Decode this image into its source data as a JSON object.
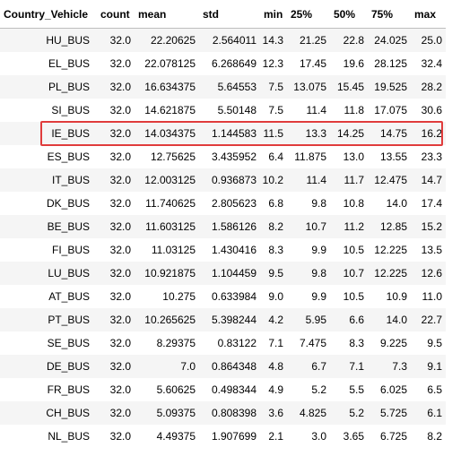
{
  "table": {
    "index_header": "Country_Vehicle",
    "columns": [
      "count",
      "mean",
      "std",
      "min",
      "25%",
      "50%",
      "75%",
      "max"
    ],
    "rows": [
      {
        "label": "HU_BUS",
        "values": [
          "32.0",
          "22.20625",
          "2.564011",
          "14.3",
          "21.25",
          "22.8",
          "24.025",
          "25.0"
        ]
      },
      {
        "label": "EL_BUS",
        "values": [
          "32.0",
          "22.078125",
          "6.268649",
          "12.3",
          "17.45",
          "19.6",
          "28.125",
          "32.4"
        ]
      },
      {
        "label": "PL_BUS",
        "values": [
          "32.0",
          "16.634375",
          "5.64553",
          "7.5",
          "13.075",
          "15.45",
          "19.525",
          "28.2"
        ]
      },
      {
        "label": "SI_BUS",
        "values": [
          "32.0",
          "14.621875",
          "5.50148",
          "7.5",
          "11.4",
          "11.8",
          "17.075",
          "30.6"
        ]
      },
      {
        "label": "IE_BUS",
        "values": [
          "32.0",
          "14.034375",
          "1.144583",
          "11.5",
          "13.3",
          "14.25",
          "14.75",
          "16.2"
        ]
      },
      {
        "label": "ES_BUS",
        "values": [
          "32.0",
          "12.75625",
          "3.435952",
          "6.4",
          "11.875",
          "13.0",
          "13.55",
          "23.3"
        ]
      },
      {
        "label": "IT_BUS",
        "values": [
          "32.0",
          "12.003125",
          "0.936873",
          "10.2",
          "11.4",
          "11.7",
          "12.475",
          "14.7"
        ]
      },
      {
        "label": "DK_BUS",
        "values": [
          "32.0",
          "11.740625",
          "2.805623",
          "6.8",
          "9.8",
          "10.8",
          "14.0",
          "17.4"
        ]
      },
      {
        "label": "BE_BUS",
        "values": [
          "32.0",
          "11.603125",
          "1.586126",
          "8.2",
          "10.7",
          "11.2",
          "12.85",
          "15.2"
        ]
      },
      {
        "label": "FI_BUS",
        "values": [
          "32.0",
          "11.03125",
          "1.430416",
          "8.3",
          "9.9",
          "10.5",
          "12.225",
          "13.5"
        ]
      },
      {
        "label": "LU_BUS",
        "values": [
          "32.0",
          "10.921875",
          "1.104459",
          "9.5",
          "9.8",
          "10.7",
          "12.225",
          "12.6"
        ]
      },
      {
        "label": "AT_BUS",
        "values": [
          "32.0",
          "10.275",
          "0.633984",
          "9.0",
          "9.9",
          "10.5",
          "10.9",
          "11.0"
        ]
      },
      {
        "label": "PT_BUS",
        "values": [
          "32.0",
          "10.265625",
          "5.398244",
          "4.2",
          "5.95",
          "6.6",
          "14.0",
          "22.7"
        ]
      },
      {
        "label": "SE_BUS",
        "values": [
          "32.0",
          "8.29375",
          "0.83122",
          "7.1",
          "7.475",
          "8.3",
          "9.225",
          "9.5"
        ]
      },
      {
        "label": "DE_BUS",
        "values": [
          "32.0",
          "7.0",
          "0.864348",
          "4.8",
          "6.7",
          "7.1",
          "7.3",
          "9.1"
        ]
      },
      {
        "label": "FR_BUS",
        "values": [
          "32.0",
          "5.60625",
          "0.498344",
          "4.9",
          "5.2",
          "5.5",
          "6.025",
          "6.5"
        ]
      },
      {
        "label": "CH_BUS",
        "values": [
          "32.0",
          "5.09375",
          "0.808398",
          "3.6",
          "4.825",
          "5.2",
          "5.725",
          "6.1"
        ]
      },
      {
        "label": "NL_BUS",
        "values": [
          "32.0",
          "4.49375",
          "1.907699",
          "2.1",
          "3.0",
          "3.65",
          "6.725",
          "8.2"
        ]
      }
    ],
    "highlighted_row": "IE_BUS",
    "highlight_color": "#e03c3c",
    "stripe_color": "#f5f5f5"
  }
}
